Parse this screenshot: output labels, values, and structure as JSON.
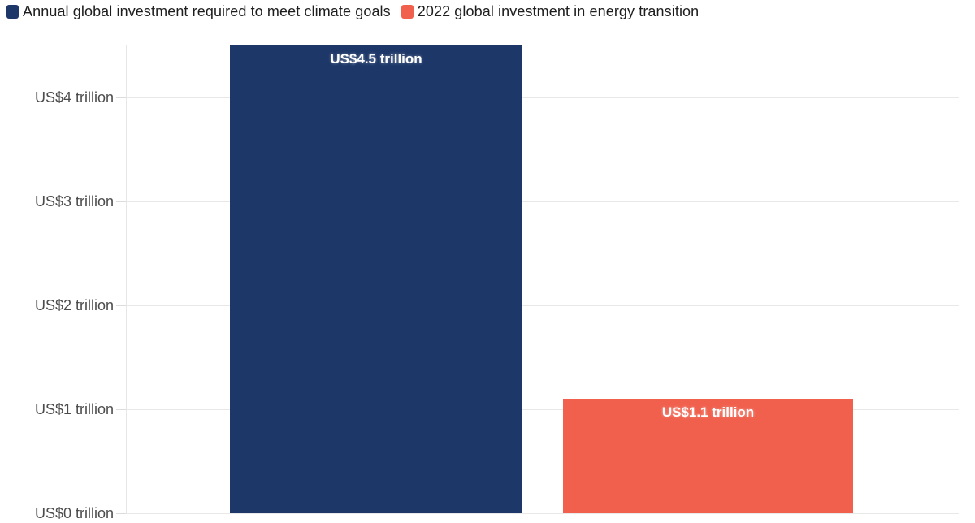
{
  "page": {
    "background": "#ffffff"
  },
  "chart_data": {
    "type": "bar",
    "title": "",
    "categories": [
      "Annual global investment required to meet climate goals",
      "2022 global investment in energy transition"
    ],
    "values": [
      4.5,
      1.1
    ],
    "unit": "US$ trillion",
    "data_labels": [
      "US$4.5 trillion",
      "US$1.1 trillion"
    ],
    "bar_colors": [
      "#1d3768",
      "#f0604d"
    ],
    "legend": {
      "position": "top-left",
      "items": [
        {
          "label": "Annual global investment required to meet climate goals",
          "color": "#1d3768"
        },
        {
          "label": "2022 global investment in energy transition",
          "color": "#f0604d"
        }
      ]
    },
    "y_axis": {
      "label": "",
      "ylim": [
        0,
        4.5
      ],
      "ticks": [
        {
          "value": 4,
          "label": "US$4 trillion"
        },
        {
          "value": 3,
          "label": "US$3 trillion"
        },
        {
          "value": 2,
          "label": "US$2 trillion"
        },
        {
          "value": 1,
          "label": "US$1 trillion"
        },
        {
          "value": 0,
          "label": "US$0 trillion"
        }
      ]
    },
    "x_axis": {
      "labels_visible": false
    },
    "grid": true,
    "colors": {
      "gridline": "#e8e8e8",
      "axis_line": "#e6e6e6",
      "tick_mark": "#dcdcdc",
      "tick_label_text": "#4c4c4c",
      "legend_text": "#1e1e1e",
      "data_label_text": "#ffffff",
      "background": "#ffffff"
    }
  }
}
